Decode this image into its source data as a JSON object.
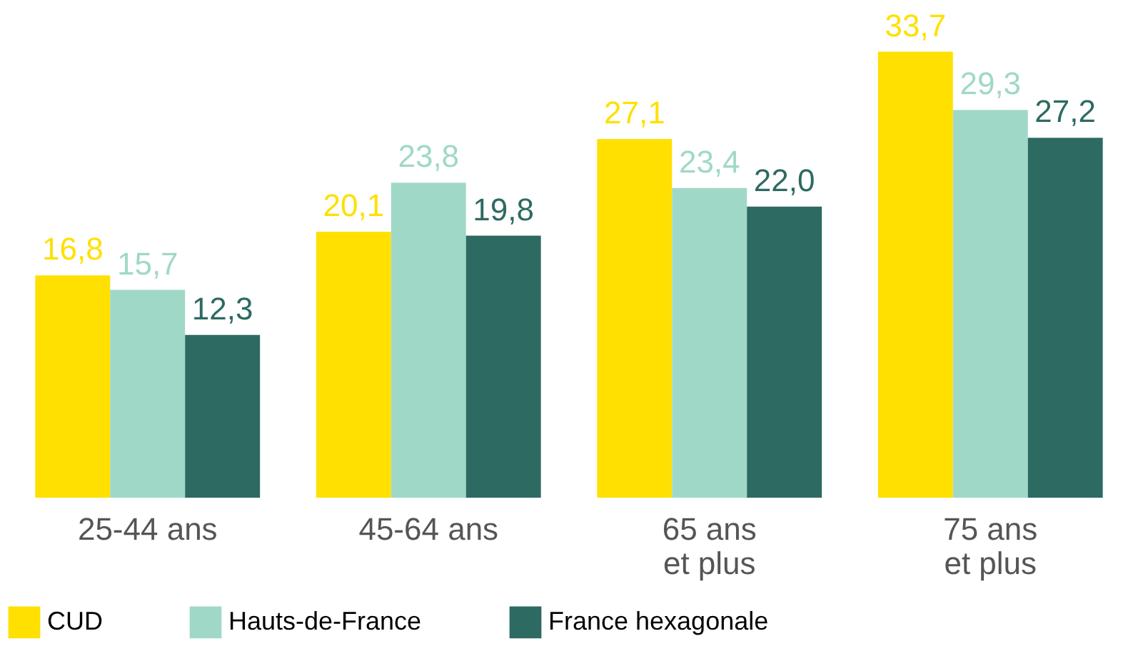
{
  "chart_data": {
    "type": "bar",
    "categories": [
      "25-44 ans",
      "45-64 ans",
      "65 ans\net plus",
      "75 ans\net plus"
    ],
    "series": [
      {
        "name": "CUD",
        "color": "#ffe000",
        "values": [
          16.8,
          20.1,
          27.1,
          33.7
        ],
        "value_labels": [
          "16,8",
          "20,1",
          "27,1",
          "33,7"
        ]
      },
      {
        "name": "Hauts-de-France",
        "color": "#a0d8c8",
        "values": [
          15.7,
          23.8,
          23.4,
          29.3
        ],
        "value_labels": [
          "15,7",
          "23,8",
          "23,4",
          "29,3"
        ]
      },
      {
        "name": "France hexagonale",
        "color": "#2d6a62",
        "values": [
          12.3,
          19.8,
          22.0,
          27.2
        ],
        "value_labels": [
          "12,3",
          "19,8",
          "22,0",
          "27,2"
        ]
      }
    ],
    "legend": "bottom",
    "grid": false
  }
}
